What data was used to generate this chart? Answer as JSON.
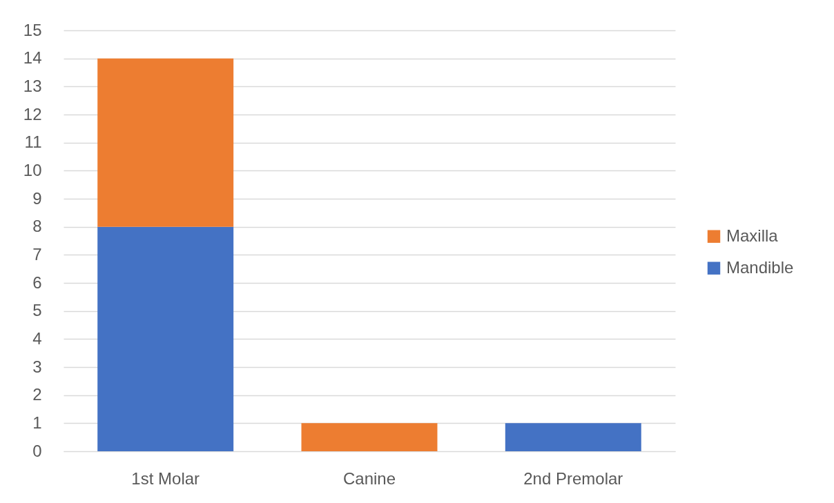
{
  "chart_data": {
    "type": "bar",
    "stacked": true,
    "categories": [
      "1st Molar",
      "Canine",
      "2nd Premolar"
    ],
    "series": [
      {
        "name": "Mandible",
        "color": "#4472c4",
        "values": [
          8,
          null,
          1
        ]
      },
      {
        "name": "Maxilla",
        "color": "#ed7d31",
        "values": [
          6,
          1,
          null
        ]
      }
    ],
    "ylim": [
      0,
      15
    ],
    "yticks": [
      0,
      1,
      2,
      3,
      4,
      5,
      6,
      7,
      8,
      9,
      10,
      11,
      12,
      13,
      14,
      15
    ],
    "grid": "y",
    "legend": "right"
  }
}
